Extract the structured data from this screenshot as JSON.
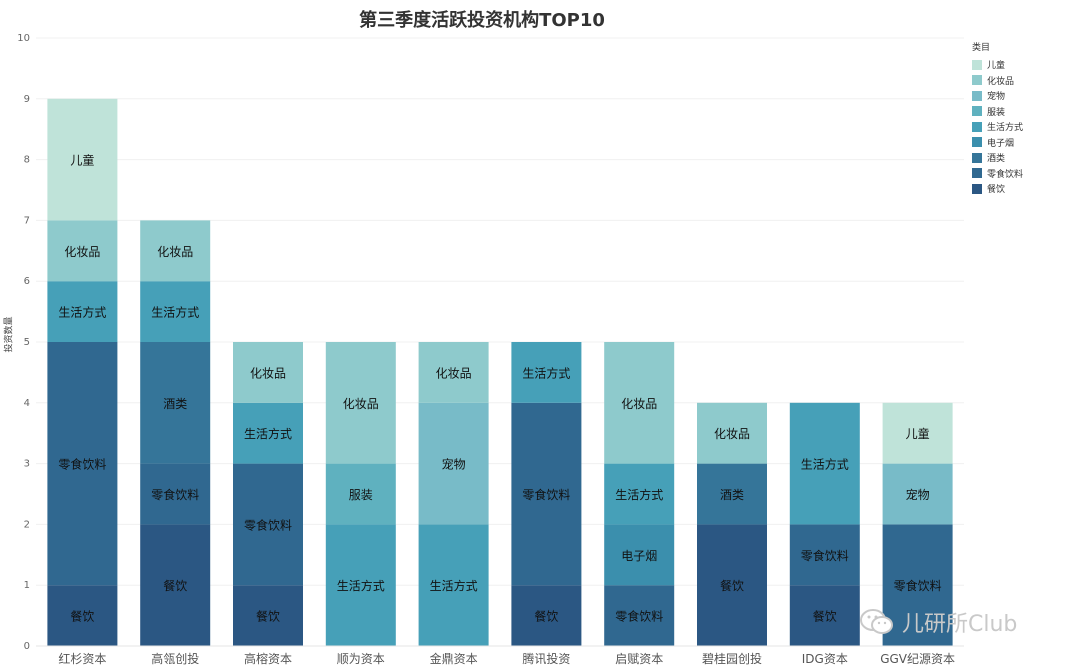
{
  "title": "第三季度活跃投资机构TOP10",
  "legend": {
    "title": "类目",
    "items": [
      {
        "label": "儿童",
        "color": "#bfe3d9"
      },
      {
        "label": "化妆品",
        "color": "#8ecacc"
      },
      {
        "label": "宠物",
        "color": "#78bbc8"
      },
      {
        "label": "服装",
        "color": "#5fb1bf"
      },
      {
        "label": "生活方式",
        "color": "#46a0b8"
      },
      {
        "label": "电子烟",
        "color": "#3b8fad"
      },
      {
        "label": "酒类",
        "color": "#357599"
      },
      {
        "label": "零食饮料",
        "color": "#306890"
      },
      {
        "label": "餐饮",
        "color": "#2b5783"
      }
    ]
  },
  "watermark": "儿研所Club",
  "chart_data": {
    "type": "bar",
    "stacked": true,
    "title": "第三季度活跃投资机构TOP10",
    "ylabel": "投资数量",
    "ylim": [
      0,
      10
    ],
    "yticks": [
      "0",
      "1",
      "2",
      "3",
      "4",
      "5",
      "6",
      "7",
      "8",
      "9",
      "10"
    ],
    "grid": true,
    "legend_position": "right",
    "categories": [
      "红杉资本",
      "高瓴创投",
      "高榕资本",
      "顺为资本",
      "金鼎资本",
      "腾讯投资",
      "启赋资本",
      "碧桂园创投",
      "IDG资本",
      "GGV纪源资本"
    ],
    "series": [
      {
        "name": "餐饮",
        "values": [
          1,
          2,
          1,
          0,
          0,
          1,
          0,
          2,
          1,
          0
        ]
      },
      {
        "name": "零食饮料",
        "values": [
          4,
          1,
          2,
          0,
          0,
          3,
          1,
          0,
          1,
          2
        ]
      },
      {
        "name": "酒类",
        "values": [
          0,
          2,
          0,
          0,
          0,
          0,
          0,
          1,
          0,
          0
        ]
      },
      {
        "name": "电子烟",
        "values": [
          0,
          0,
          0,
          0,
          0,
          0,
          1,
          0,
          0,
          0
        ]
      },
      {
        "name": "生活方式",
        "values": [
          1,
          1,
          1,
          2,
          2,
          1,
          1,
          0,
          2,
          0
        ]
      },
      {
        "name": "服装",
        "values": [
          0,
          0,
          0,
          1,
          0,
          0,
          0,
          0,
          0,
          0
        ]
      },
      {
        "name": "宠物",
        "values": [
          0,
          0,
          0,
          0,
          2,
          0,
          0,
          0,
          0,
          1
        ]
      },
      {
        "name": "化妆品",
        "values": [
          1,
          1,
          1,
          2,
          1,
          0,
          2,
          1,
          0,
          0
        ]
      },
      {
        "name": "儿童",
        "values": [
          2,
          0,
          0,
          0,
          0,
          0,
          0,
          0,
          0,
          1
        ]
      }
    ]
  }
}
